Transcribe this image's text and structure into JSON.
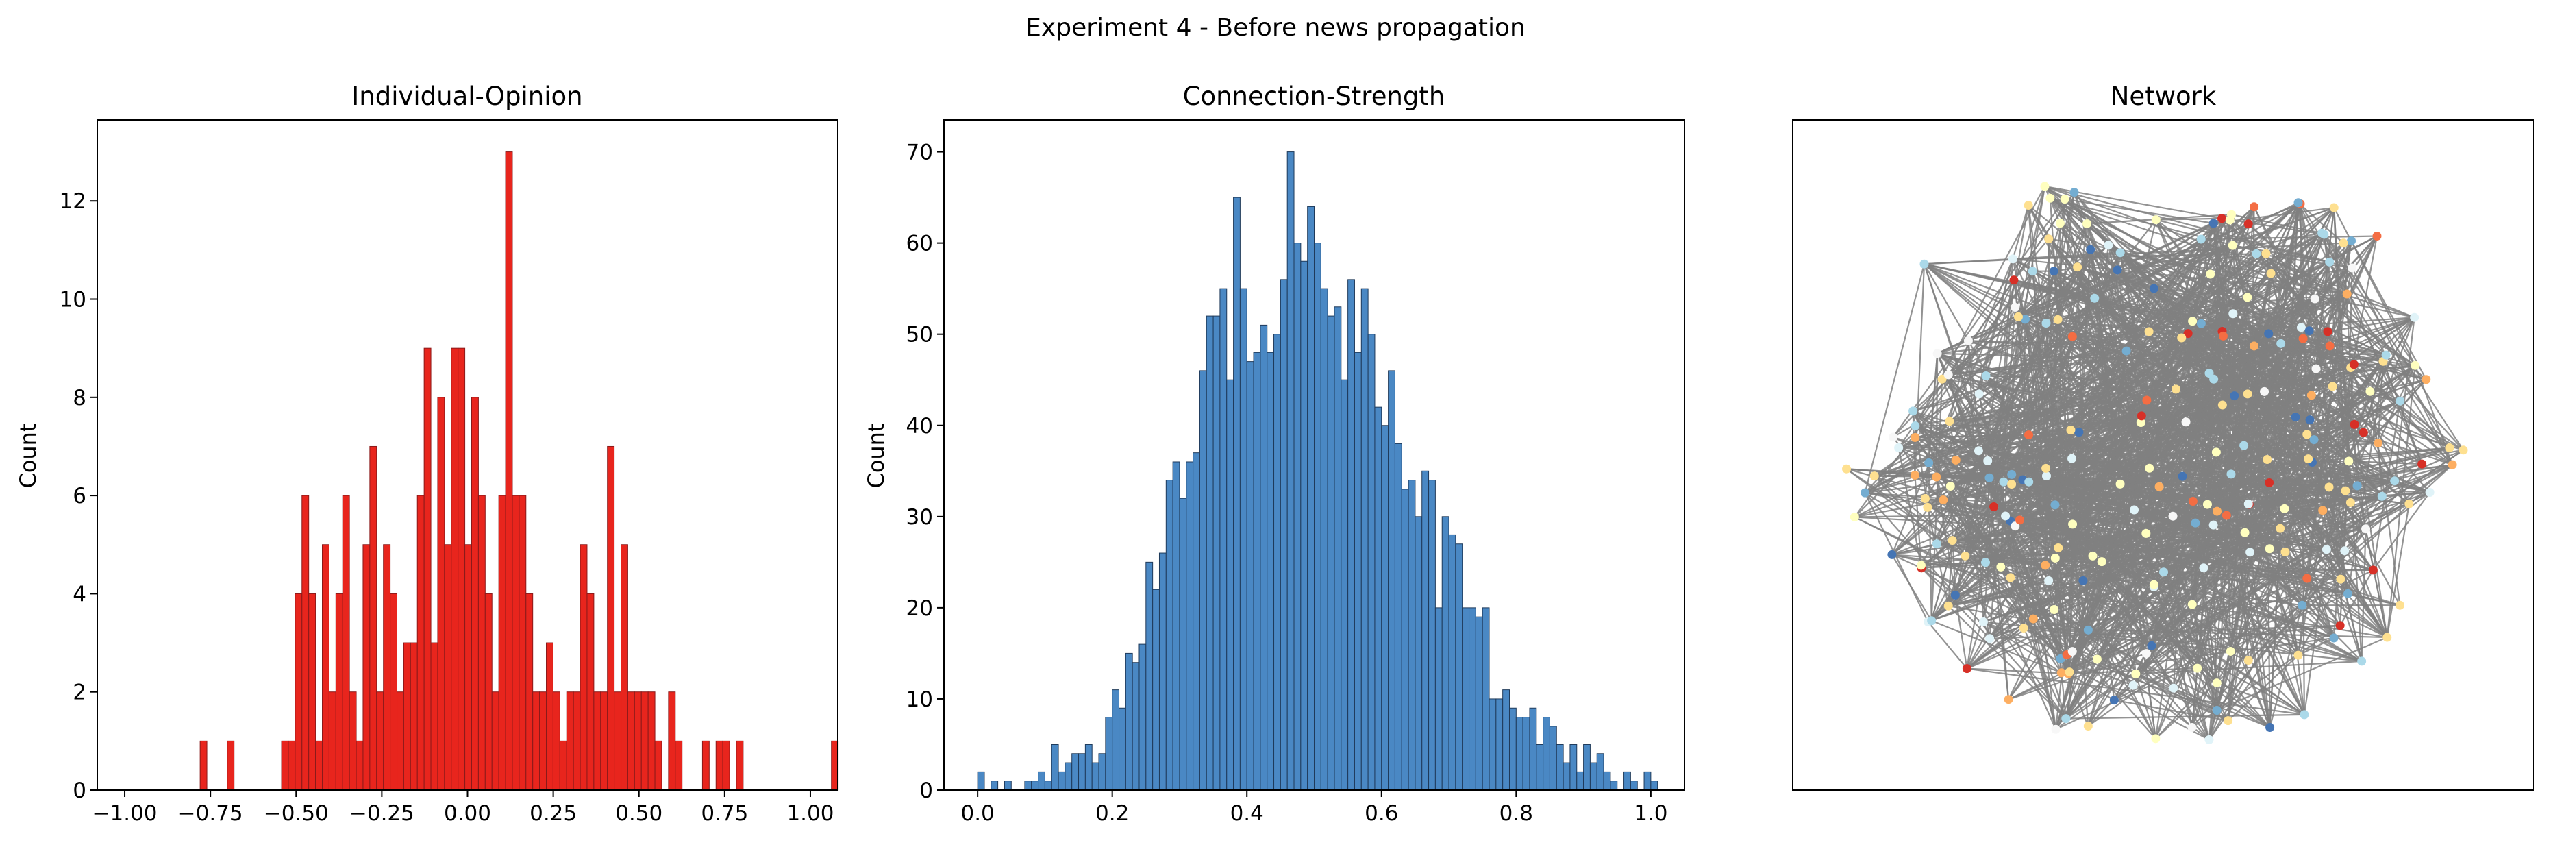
{
  "figure": {
    "suptitle": "Experiment 4 - Before news propagation",
    "colors": {
      "opinion_bar": "#e8251d",
      "opinion_edge": "#8b1a1a",
      "strength_bar": "#4a88c4",
      "strength_edge": "#1f3a5a",
      "network_edge": "#808080"
    }
  },
  "chart_data": [
    {
      "type": "bar",
      "title": "Individual-Opinion",
      "xlabel": "",
      "ylabel": "Count",
      "xlim": [
        -1.08,
        1.08
      ],
      "ylim": [
        0,
        13.65
      ],
      "xticks": [
        -1.0,
        -0.75,
        -0.5,
        -0.25,
        0.0,
        0.25,
        0.5,
        0.75,
        1.0
      ],
      "xtick_labels": [
        "−1.00",
        "−0.75",
        "−0.50",
        "−0.25",
        "0.00",
        "0.25",
        "0.50",
        "0.75",
        "1.00"
      ],
      "yticks": [
        0,
        2,
        4,
        6,
        8,
        10,
        12
      ],
      "ytick_labels": [
        "0",
        "2",
        "4",
        "6",
        "8",
        "10",
        "12"
      ],
      "bin_start": -0.78,
      "bin_width": 0.0198,
      "values": [
        1,
        0,
        0,
        0,
        1,
        0,
        0,
        0,
        0,
        0,
        0,
        0,
        1,
        1,
        4,
        6,
        4,
        1,
        5,
        2,
        4,
        6,
        2,
        1,
        5,
        7,
        2,
        5,
        4,
        2,
        3,
        3,
        6,
        9,
        3,
        8,
        5,
        9,
        9,
        5,
        8,
        6,
        4,
        2,
        6,
        13,
        6,
        6,
        4,
        2,
        2,
        3,
        2,
        1,
        2,
        2,
        5,
        4,
        2,
        2,
        7,
        2,
        5,
        2,
        2,
        2,
        2,
        1,
        0,
        2,
        1,
        0,
        0,
        0,
        1,
        0,
        1,
        1,
        0,
        1,
        0,
        0,
        0,
        0,
        0,
        0,
        0,
        0,
        0,
        0,
        0,
        0,
        0,
        1
      ],
      "grid": false
    },
    {
      "type": "bar",
      "title": "Connection-Strength",
      "xlabel": "",
      "ylabel": "Count",
      "xlim": [
        -0.05,
        1.05
      ],
      "ylim": [
        0,
        73.5
      ],
      "xticks": [
        0.0,
        0.2,
        0.4,
        0.6,
        0.8,
        1.0
      ],
      "xtick_labels": [
        "0.0",
        "0.2",
        "0.4",
        "0.6",
        "0.8",
        "1.0"
      ],
      "yticks": [
        0,
        10,
        20,
        30,
        40,
        50,
        60,
        70
      ],
      "ytick_labels": [
        "0",
        "10",
        "20",
        "30",
        "40",
        "50",
        "60",
        "70"
      ],
      "bin_start": 0.0,
      "bin_width": 0.01,
      "values": [
        2,
        0,
        1,
        0,
        1,
        0,
        0,
        1,
        1,
        2,
        1,
        5,
        2,
        3,
        4,
        4,
        5,
        3,
        4,
        8,
        11,
        9,
        15,
        14,
        16,
        25,
        22,
        26,
        34,
        36,
        32,
        36,
        37,
        46,
        52,
        52,
        55,
        45,
        65,
        55,
        47,
        48,
        51,
        48,
        50,
        56,
        70,
        60,
        58,
        64,
        60,
        55,
        52,
        53,
        45,
        56,
        48,
        55,
        50,
        42,
        40,
        46,
        38,
        33,
        34,
        30,
        35,
        34,
        20,
        30,
        28,
        27,
        20,
        20,
        19,
        20,
        10,
        10,
        11,
        9,
        8,
        8,
        9,
        5,
        8,
        7,
        5,
        3,
        5,
        2,
        5,
        3,
        4,
        2,
        1,
        0,
        2,
        1,
        0,
        2,
        1
      ],
      "grid": false
    }
  ],
  "network": {
    "title": "Network"
  }
}
